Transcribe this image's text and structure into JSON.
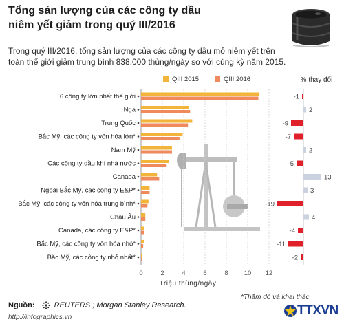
{
  "header": {
    "title_line1": "Tổng sản lượng của các công ty dầu",
    "title_line2": "niêm yết giảm trong quý III/2016"
  },
  "intro": {
    "line1": "Trong quý III/2016, tổng sản lượng của các công ty dầu mỏ niêm yết trên",
    "line2": "toàn thế giới giảm trung bình 838.000 thùng/ngày so với cùng kỳ năm 2015."
  },
  "pct_header": "% thay đổi",
  "footer": {
    "source_label": "Nguồn:",
    "source_text": "REUTERS ; Morgan Stanley Research.",
    "url": "http://infographics.vn",
    "footnote": "*Thăm dò và khai thác.",
    "logo_text": "TTXVN"
  },
  "colors": {
    "q3_2015": "#f2b43b",
    "q3_2016": "#ee8a5c",
    "negative": "#e0202a",
    "positive": "#c9d2de",
    "grid": "#cfcfcf",
    "barrel": "#2b2b2b",
    "pumpjack": "#b7b7b7"
  },
  "chart_data": {
    "type": "bar",
    "orientation": "horizontal",
    "categories": [
      "6 công ty lớn nhất thế giới",
      "Nga",
      "Trung Quốc",
      "Bắc Mỹ, các công ty vốn hóa lớn*",
      "Nam Mỹ",
      "Các công ty dầu khí nhà nước",
      "Canada",
      "Ngoài Bắc Mỹ, các công ty E&P*",
      "Bắc Mỹ, các công ty vốn hóa trung bình*",
      "Châu Âu",
      "Canada, các công ty E&P*",
      "Bắc Mỹ, các công ty vốn hóa nhỏ*",
      "Bắc Mỹ, các công ty nhỏ nhất*"
    ],
    "series": [
      {
        "name": "QIII 2015",
        "values": [
          11.1,
          4.5,
          4.8,
          3.9,
          2.9,
          2.6,
          1.5,
          0.8,
          0.7,
          0.4,
          0.3,
          0.3,
          0.1
        ]
      },
      {
        "name": "QIII 2016",
        "values": [
          11.0,
          4.6,
          4.4,
          3.6,
          2.9,
          2.4,
          1.7,
          0.8,
          0.6,
          0.4,
          0.3,
          0.2,
          0.1
        ]
      }
    ],
    "pct_change": [
      -1,
      2,
      -9,
      -7,
      2,
      -5,
      13,
      3,
      -19,
      4,
      -4,
      -11,
      -2
    ],
    "pct_labels": [
      "-1",
      "2",
      "-9",
      "-7",
      "2",
      "-5",
      "13",
      "3",
      "-19",
      "4",
      "-4",
      "-11",
      "-2"
    ],
    "x_ticks": [
      "0",
      "2",
      "4",
      "6",
      "8",
      "10",
      "12"
    ],
    "xlim": [
      0,
      12
    ],
    "xlabel": "Triệu thùng/ngày",
    "pct_header": "% thay đổi",
    "legend": "top"
  }
}
